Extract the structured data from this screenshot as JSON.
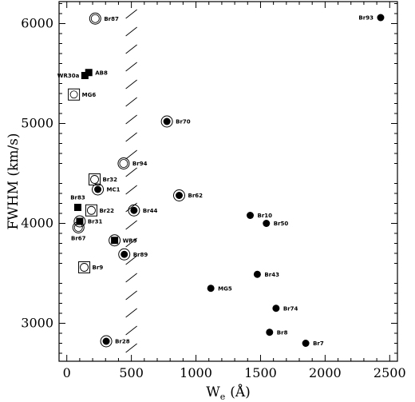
{
  "chart_data": {
    "type": "scatter",
    "title": "",
    "xlabel": "W",
    "xlabel_subscript": "e",
    "xlabel_unit": "(Å)",
    "ylabel": "FWHM (km/s)",
    "xlim": [
      -60,
      2560
    ],
    "ylim": [
      2620,
      6220
    ],
    "xticks": [
      0,
      500,
      1000,
      1500,
      2000,
      2500
    ],
    "yticks": [
      3000,
      4000,
      5000,
      6000
    ],
    "grid": false,
    "threshold_line_x": 500,
    "threshold_style": "hatched dashed vertical line",
    "points": [
      {
        "label": "Br87",
        "x": 220,
        "y": 6050,
        "marker": "open-circle"
      },
      {
        "label": "Br93",
        "x": 2430,
        "y": 6060,
        "marker": "filled-circle"
      },
      {
        "label": "AB8",
        "x": 170,
        "y": 5510,
        "marker": "filled-square"
      },
      {
        "label": "WR30a",
        "x": 140,
        "y": 5480,
        "marker": "filled-square"
      },
      {
        "label": "MG6",
        "x": 55,
        "y": 5290,
        "marker": "open-square"
      },
      {
        "label": "Br70",
        "x": 775,
        "y": 5020,
        "marker": "circled-dot"
      },
      {
        "label": "Br94",
        "x": 440,
        "y": 4600,
        "marker": "open-circle"
      },
      {
        "label": "Br32",
        "x": 215,
        "y": 4440,
        "marker": "open-square-circle"
      },
      {
        "label": "MC1",
        "x": 240,
        "y": 4340,
        "marker": "circled-dot"
      },
      {
        "label": "Br62",
        "x": 870,
        "y": 4280,
        "marker": "circled-dot"
      },
      {
        "label": "Br83",
        "x": 85,
        "y": 4160,
        "marker": "filled-square"
      },
      {
        "label": "Br22",
        "x": 190,
        "y": 4130,
        "marker": "open-square-circle"
      },
      {
        "label": "Br44",
        "x": 520,
        "y": 4130,
        "marker": "circled-dot"
      },
      {
        "label": "Br10",
        "x": 1420,
        "y": 4080,
        "marker": "filled-circle"
      },
      {
        "label": "Br31",
        "x": 100,
        "y": 4020,
        "marker": "circled-square"
      },
      {
        "label": "Br50",
        "x": 1545,
        "y": 4000,
        "marker": "filled-circle"
      },
      {
        "label": "Br67",
        "x": 90,
        "y": 3960,
        "marker": "open-circle"
      },
      {
        "label": "WR9",
        "x": 370,
        "y": 3830,
        "marker": "circled-square"
      },
      {
        "label": "Br89",
        "x": 445,
        "y": 3690,
        "marker": "circled-dot"
      },
      {
        "label": "Br9",
        "x": 135,
        "y": 3560,
        "marker": "open-square-circle"
      },
      {
        "label": "Br43",
        "x": 1475,
        "y": 3490,
        "marker": "filled-circle"
      },
      {
        "label": "MG5",
        "x": 1115,
        "y": 3350,
        "marker": "filled-circle"
      },
      {
        "label": "Br74",
        "x": 1620,
        "y": 3150,
        "marker": "filled-circle"
      },
      {
        "label": "Br8",
        "x": 1570,
        "y": 2910,
        "marker": "filled-circle"
      },
      {
        "label": "Br28",
        "x": 305,
        "y": 2820,
        "marker": "circled-dot"
      },
      {
        "label": "Br7",
        "x": 1850,
        "y": 2800,
        "marker": "filled-circle"
      }
    ]
  }
}
